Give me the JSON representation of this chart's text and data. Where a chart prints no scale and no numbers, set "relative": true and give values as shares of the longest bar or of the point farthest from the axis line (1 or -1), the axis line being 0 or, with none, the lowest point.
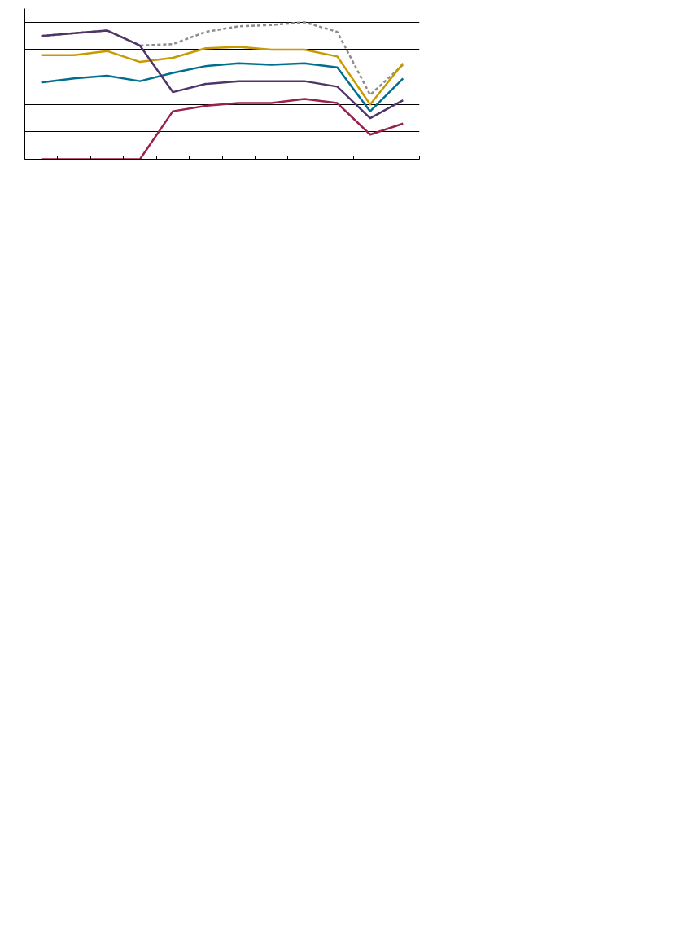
{
  "chart_data": {
    "type": "line",
    "relative": true,
    "grid": "y",
    "line_style": "solid",
    "marker": "none",
    "categories": [
      null,
      null,
      null,
      null,
      null,
      null,
      null,
      null,
      null,
      null,
      null,
      null
    ],
    "series": [
      {
        "color": "#8c8c8c",
        "line_style": "dashed",
        "values": [
          0.9,
          0.92,
          0.94,
          0.83,
          0.84,
          0.93,
          0.97,
          0.98,
          1.0,
          0.93,
          0.47,
          0.69
        ]
      },
      {
        "color": "#006e8f",
        "values": [
          0.56,
          0.59,
          0.61,
          0.57,
          0.63,
          0.68,
          0.7,
          0.69,
          0.7,
          0.67,
          0.35,
          0.59
        ]
      },
      {
        "color": "#c89a00",
        "values": [
          0.76,
          0.76,
          0.79,
          0.71,
          0.74,
          0.81,
          0.82,
          0.8,
          0.8,
          0.75,
          0.4,
          0.7
        ]
      },
      {
        "color": "#4f3468",
        "values": [
          0.9,
          0.92,
          0.94,
          0.83,
          0.49,
          0.55,
          0.57,
          0.57,
          0.57,
          0.53,
          0.3,
          0.43
        ]
      },
      {
        "color": "#9b1f4f",
        "values": [
          0,
          0,
          0,
          0,
          0.35,
          0.39,
          0.41,
          0.41,
          0.44,
          0.41,
          0.18,
          0.26
        ]
      }
    ]
  }
}
